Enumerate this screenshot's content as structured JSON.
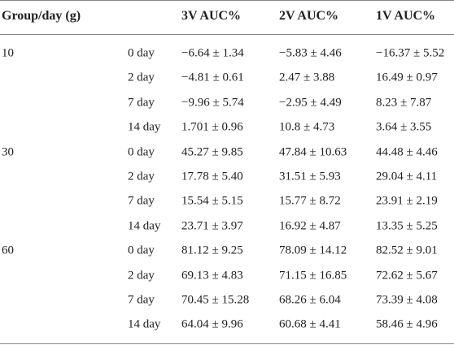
{
  "table": {
    "header": [
      "Group/day (g)",
      "3V AUC%",
      "2V AUC%",
      "1V AUC%"
    ],
    "groups": [
      {
        "label": "10",
        "rows": [
          {
            "day": "0 day",
            "cells": [
              "−6.64 ± 1.34",
              "−5.83 ± 4.46",
              "−16.37 ± 5.52"
            ]
          },
          {
            "day": "2 day",
            "cells": [
              "−4.81 ± 0.61",
              "2.47 ± 3.88",
              "16.49 ± 0.97"
            ]
          },
          {
            "day": "7 day",
            "cells": [
              "−9.96 ± 5.74",
              "−2.95 ± 4.49",
              "8.23 ± 7.87"
            ]
          },
          {
            "day": "14 day",
            "cells": [
              "1.701 ± 0.96",
              "10.8 ± 4.73",
              "3.64 ± 3.55"
            ]
          }
        ]
      },
      {
        "label": "30",
        "rows": [
          {
            "day": "0 day",
            "cells": [
              "45.27 ± 9.85",
              "47.84 ± 10.63",
              "44.48 ± 4.46"
            ]
          },
          {
            "day": "2 day",
            "cells": [
              "17.78 ± 5.40",
              "31.51 ± 5.93",
              "29.04 ± 4.11"
            ]
          },
          {
            "day": "7 day",
            "cells": [
              "15.54 ± 5.15",
              "15.77 ± 8.72",
              "23.91 ± 2.19"
            ]
          },
          {
            "day": "14 day",
            "cells": [
              "23.71 ± 3.97",
              "16.92 ± 4.87",
              "13.35 ± 5.25"
            ]
          }
        ]
      },
      {
        "label": "60",
        "rows": [
          {
            "day": "0 day",
            "cells": [
              "81.12 ± 9.25",
              "78.09 ± 14.12",
              "82.52 ± 9.01"
            ]
          },
          {
            "day": "2 day",
            "cells": [
              "69.13 ± 4.83",
              "71.15 ± 16.85",
              "72.62 ± 5.67"
            ]
          },
          {
            "day": "7 day",
            "cells": [
              "70.45 ± 15.28",
              "68.26 ± 6.04",
              "73.39 ± 4.08"
            ]
          },
          {
            "day": "14 day",
            "cells": [
              "64.04 ± 9.96",
              "60.68 ± 4.41",
              "58.46 ± 4.96"
            ]
          }
        ]
      }
    ]
  }
}
